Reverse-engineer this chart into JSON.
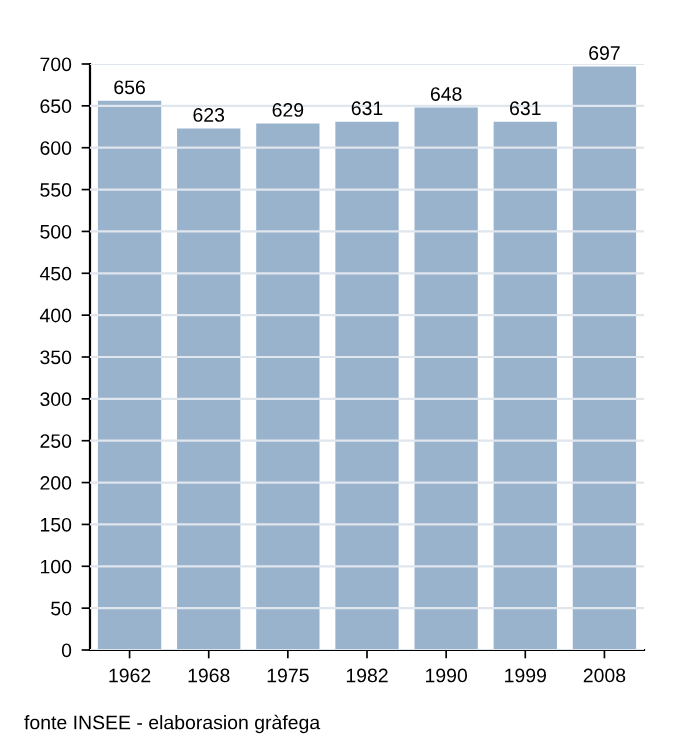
{
  "chart_data": {
    "type": "bar",
    "categories": [
      "1962",
      "1968",
      "1975",
      "1982",
      "1990",
      "1999",
      "2008"
    ],
    "values": [
      656,
      623,
      629,
      631,
      648,
      631,
      697
    ],
    "color": "#9ab3cd",
    "ylim": [
      0,
      700
    ],
    "yticks": [
      0,
      50,
      100,
      150,
      200,
      250,
      300,
      350,
      400,
      450,
      500,
      550,
      600,
      650,
      700
    ],
    "grid": "y",
    "data_labels": true,
    "annotations": [
      "fonte INSEE - elaborasion gràfega"
    ]
  }
}
